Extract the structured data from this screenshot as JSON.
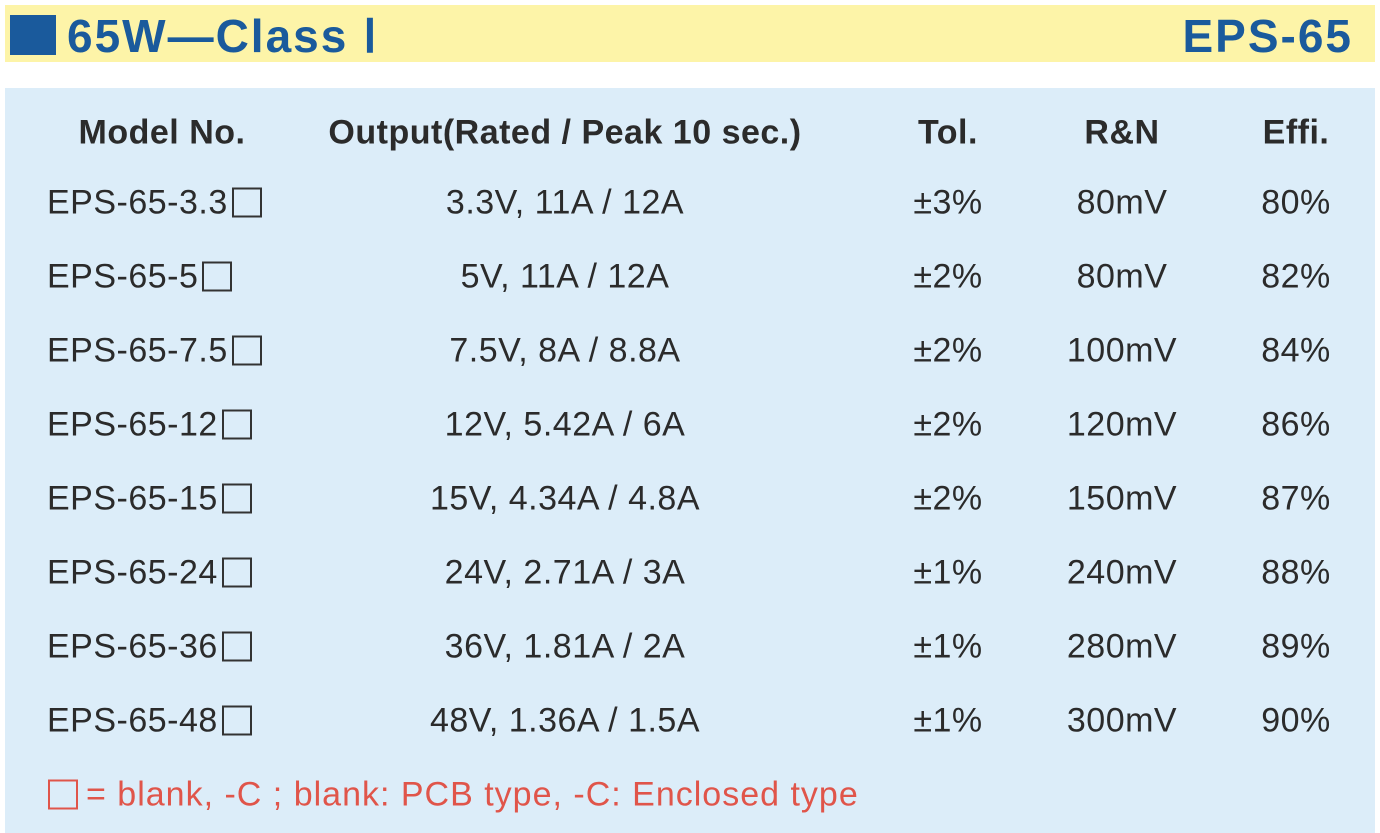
{
  "header": {
    "title": "65W—Class Ⅰ",
    "series": "EPS-65"
  },
  "table": {
    "columns": [
      "Model No.",
      "Output(Rated / Peak 10 sec.)",
      "Tol.",
      "R&N",
      "Effi."
    ],
    "rows": [
      [
        "EPS-65-3.3",
        "3.3V, 11A / 12A",
        "±3%",
        "80mV",
        "80%"
      ],
      [
        "EPS-65-5",
        "5V, 11A / 12A",
        "±2%",
        "80mV",
        "82%"
      ],
      [
        "EPS-65-7.5",
        "7.5V, 8A / 8.8A",
        "±2%",
        "100mV",
        "84%"
      ],
      [
        "EPS-65-12",
        "12V, 5.42A / 6A",
        "±2%",
        "120mV",
        "86%"
      ],
      [
        "EPS-65-15",
        "15V, 4.34A / 4.8A",
        "±2%",
        "150mV",
        "87%"
      ],
      [
        "EPS-65-24",
        "24V, 2.71A / 3A",
        "±1%",
        "240mV",
        "88%"
      ],
      [
        "EPS-65-36",
        "36V, 1.81A / 2A",
        "±1%",
        "280mV",
        "89%"
      ],
      [
        "EPS-65-48",
        "48V, 1.36A / 1.5A",
        "±1%",
        "300mV",
        "90%"
      ]
    ]
  },
  "footnote": "= blank, -C ; blank: PCB type, -C: Enclosed type"
}
